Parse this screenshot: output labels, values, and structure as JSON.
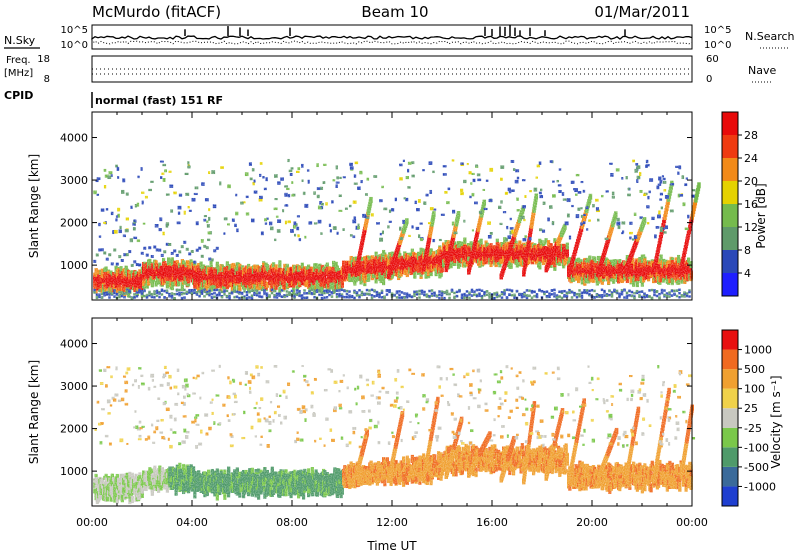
{
  "header": {
    "station": "McMurdo (fitACF)",
    "beam": "Beam 10",
    "date": "01/Mar/2011",
    "cpid_value": "normal (fast) 151 RF"
  },
  "status_panel": {
    "nsky_label": "N.Sky",
    "nsky_ticks": [
      "10^5",
      "10^0"
    ],
    "nsearch_label": "N.Search",
    "nsearch_ticks": [
      "10^5",
      "10^0"
    ],
    "freq_label": [
      "Freq.",
      "[MHz]"
    ],
    "freq_ticks": [
      "18",
      "8"
    ],
    "nave_label": "Nave",
    "nave_ticks": [
      "60",
      "0"
    ],
    "cpid_label": "CPID"
  },
  "chart_data": [
    {
      "type": "heatmap",
      "title": "",
      "xlabel": "",
      "ylabel": "Slant Range [km]",
      "xlim": [
        0,
        24
      ],
      "ylim": [
        180,
        4600
      ],
      "yticks": [
        "1000",
        "2000",
        "3000",
        "4000"
      ],
      "colorbar": {
        "label": "Power [dB]",
        "ticks": [
          "4",
          "8",
          "12",
          "16",
          "20",
          "24",
          "28"
        ],
        "colors": [
          "#1f1fff",
          "#2a48b8",
          "#5f9a6a",
          "#75bb4d",
          "#e5d200",
          "#f28a18",
          "#ef3a10",
          "#e80a0a"
        ]
      }
    },
    {
      "type": "heatmap",
      "title": "",
      "xlabel": "Time UT",
      "ylabel": "Slant Range [km]",
      "xlim": [
        0,
        24
      ],
      "ylim": [
        180,
        4600
      ],
      "xticks": [
        "00:00",
        "04:00",
        "08:00",
        "12:00",
        "16:00",
        "20:00",
        "00:00"
      ],
      "yticks": [
        "1000",
        "2000",
        "3000",
        "4000"
      ],
      "colorbar": {
        "label": "Velocity [m s⁻¹]",
        "ticks": [
          "1000",
          "500",
          "100",
          "25",
          "-25",
          "-100",
          "-500",
          "-1000"
        ],
        "colors": [
          "#1f3fd0",
          "#3a6a9a",
          "#4f9a6a",
          "#7ac84a",
          "#c8c8c0",
          "#f0d24a",
          "#f0a030",
          "#f06a20",
          "#e81010"
        ]
      }
    }
  ]
}
